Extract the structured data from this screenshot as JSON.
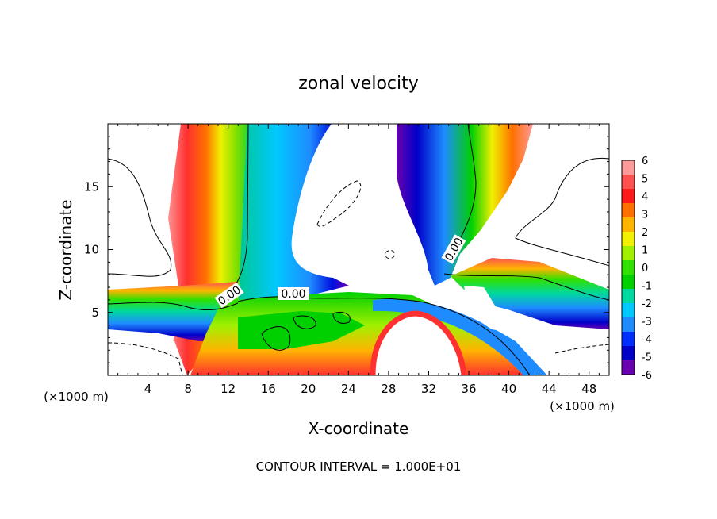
{
  "chart_data": {
    "type": "heatmap",
    "title": "zonal velocity",
    "xlabel": "X-coordinate",
    "ylabel": "Z-coordinate",
    "x_unit_left": "(×1000 m)",
    "x_unit_right": "(×1000 m)",
    "xlim": [
      0,
      50
    ],
    "ylim": [
      0,
      20
    ],
    "x_ticks": [
      "4",
      "8",
      "12",
      "16",
      "20",
      "24",
      "28",
      "32",
      "36",
      "40",
      "44",
      "48"
    ],
    "y_ticks": [
      "5",
      "10",
      "15"
    ],
    "colorbar": {
      "labels": [
        "6",
        "5",
        "4",
        "3",
        "2",
        "1",
        "0",
        "-1",
        "-2",
        "-3",
        "-4",
        "-5",
        "-6"
      ],
      "colors": [
        "#ff9a9a",
        "#ff5050",
        "#ff1a1a",
        "#ff7000",
        "#ffb400",
        "#f0f000",
        "#a0f000",
        "#30e000",
        "#00d000",
        "#00d8a0",
        "#00c8ff",
        "#1e8cff",
        "#0030ff",
        "#0000c8",
        "#6a00b0"
      ]
    },
    "contour_labels": [
      "0.00",
      "0.00",
      "0.00"
    ],
    "footer": "CONTOUR INTERVAL = 1.000E+01"
  }
}
